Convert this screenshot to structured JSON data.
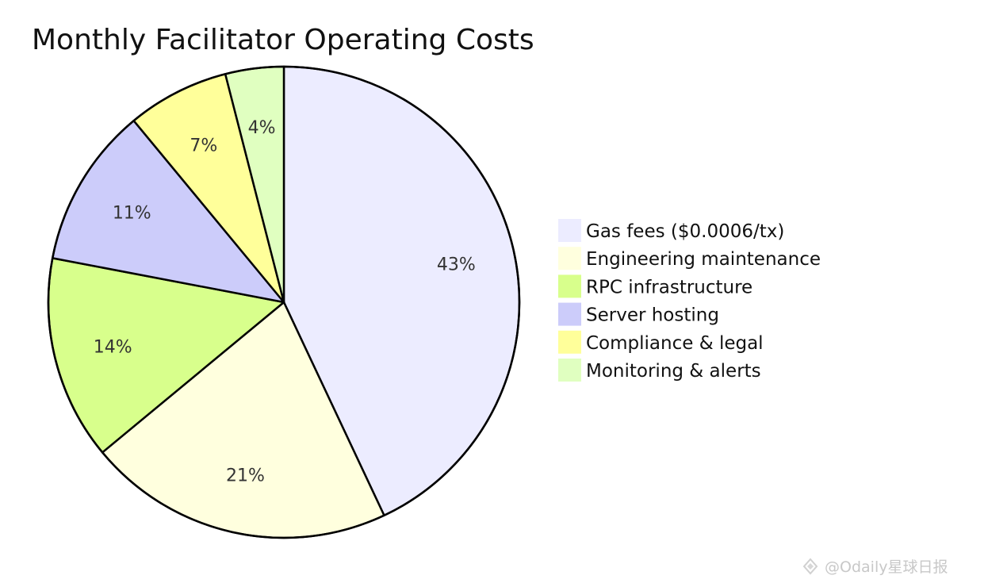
{
  "chart_data": {
    "type": "pie",
    "title": "Monthly Facilitator Operating Costs",
    "slices": [
      {
        "label": "Gas fees ($0.0006/tx)",
        "value": 43,
        "display": "43%",
        "color": "#ececff"
      },
      {
        "label": "Engineering maintenance",
        "value": 21,
        "display": "21%",
        "color": "#ffffde"
      },
      {
        "label": "RPC infrastructure",
        "value": 14,
        "display": "14%",
        "color": "#d8ff8c"
      },
      {
        "label": "Server hosting",
        "value": 11,
        "display": "11%",
        "color": "#ccccfa"
      },
      {
        "label": "Compliance & legal",
        "value": 7,
        "display": "7%",
        "color": "#ffff9a"
      },
      {
        "label": "Monitoring & alerts",
        "value": 4,
        "display": "4%",
        "color": "#e0ffc0"
      }
    ],
    "legend_position": "right",
    "stroke_color": "#000000"
  },
  "watermark": {
    "text": "@Odaily星球日报"
  }
}
